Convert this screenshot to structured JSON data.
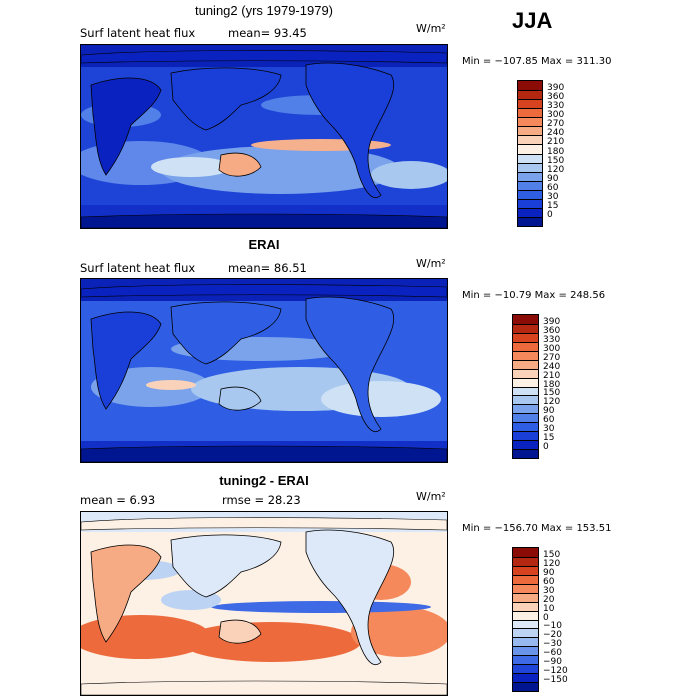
{
  "season": "JJA",
  "panels": [
    {
      "title": "tuning2 (yrs 1979-1979)",
      "subtitle_left": "Surf latent heat flux",
      "subtitle_right": "mean=   93.45",
      "units": "W/m²",
      "minmax": "Min = −107.85  Max = 311.30",
      "colorbar": {
        "labels": [
          "390",
          "360",
          "330",
          "300",
          "270",
          "240",
          "210",
          "180",
          "150",
          "120",
          "90",
          "60",
          "30",
          "15",
          "0"
        ],
        "colors": [
          "#8b0c07",
          "#b42812",
          "#d8431f",
          "#ec6a3c",
          "#f5895c",
          "#f7ab85",
          "#fad2b9",
          "#fdf0e4",
          "#cfe2f5",
          "#a8c8f0",
          "#7aa3ec",
          "#5080e8",
          "#2f5ee4",
          "#1a3ed8",
          "#0a22c0",
          "#001690"
        ]
      }
    },
    {
      "title": "ERAI",
      "subtitle_left": "Surf latent heat flux",
      "subtitle_right": "mean=   86.51",
      "units": "W/m²",
      "minmax": "Min = −10.79  Max = 248.56",
      "colorbar": {
        "labels": [
          "390",
          "360",
          "330",
          "300",
          "270",
          "240",
          "210",
          "180",
          "150",
          "120",
          "90",
          "60",
          "30",
          "15",
          "0"
        ],
        "colors": [
          "#8b0c07",
          "#b42812",
          "#d8431f",
          "#ec6a3c",
          "#f5895c",
          "#f7ab85",
          "#fad2b9",
          "#fdf0e4",
          "#cfe2f5",
          "#a8c8f0",
          "#7aa3ec",
          "#5080e8",
          "#2f5ee4",
          "#1a3ed8",
          "#0a22c0",
          "#001690"
        ]
      }
    },
    {
      "title": "tuning2 - ERAI",
      "subtitle_left": "mean =    6.93",
      "subtitle_right": "rmse =   28.23",
      "units": "W/m²",
      "minmax": "Min = −156.70  Max = 153.51",
      "colorbar": {
        "labels": [
          "150",
          "120",
          "90",
          "60",
          "30",
          "20",
          "10",
          "0",
          "−10",
          "−20",
          "−30",
          "−60",
          "−90",
          "−120",
          "−150"
        ],
        "colors": [
          "#8b0c07",
          "#b42812",
          "#d8431f",
          "#ec6a3c",
          "#f5895c",
          "#f7ab85",
          "#fad2b9",
          "#fdf0e4",
          "#dde9f8",
          "#bcd3f3",
          "#98b9ef",
          "#6a94ea",
          "#3f6ae5",
          "#1f44d8",
          "#0a22c0",
          "#001690"
        ]
      }
    }
  ]
}
